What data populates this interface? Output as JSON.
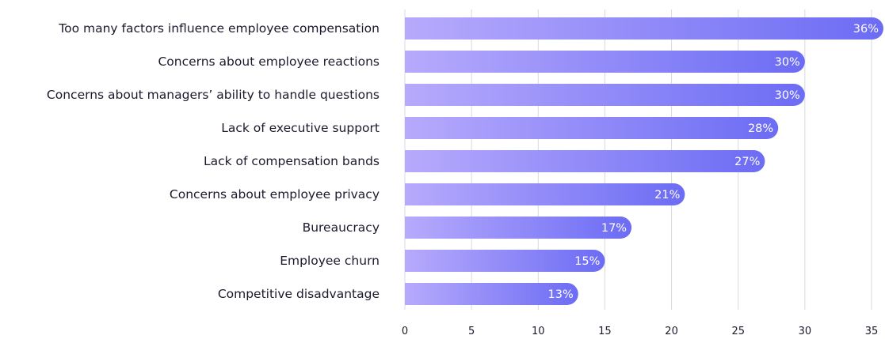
{
  "chart_data": {
    "type": "bar",
    "orientation": "horizontal",
    "title": "",
    "xlabel": "",
    "ylabel": "",
    "categories": [
      "Too many factors influence employee compensation",
      "Concerns about employee reactions",
      "Concerns about managers’ ability to handle questions",
      "Lack of executive support",
      "Lack of compensation bands",
      "Concerns about employee privacy",
      "Bureaucracy",
      "Employee churn",
      "Competitive disadvantage"
    ],
    "values": [
      36,
      30,
      30,
      28,
      27,
      21,
      17,
      15,
      13
    ],
    "data_labels": [
      "36%",
      "30%",
      "30%",
      "28%",
      "27%",
      "21%",
      "17%",
      "15%",
      "13%"
    ],
    "xlim": [
      0,
      35
    ],
    "xticks": [
      0,
      5,
      10,
      15,
      20,
      25,
      30,
      35
    ],
    "grid": true,
    "colors": {
      "bar_start": "#b7aafc",
      "bar_end": "#6c6cf4",
      "grid": "#d9d9de",
      "text": "#1a1a2e",
      "label": "#ffffff"
    }
  }
}
